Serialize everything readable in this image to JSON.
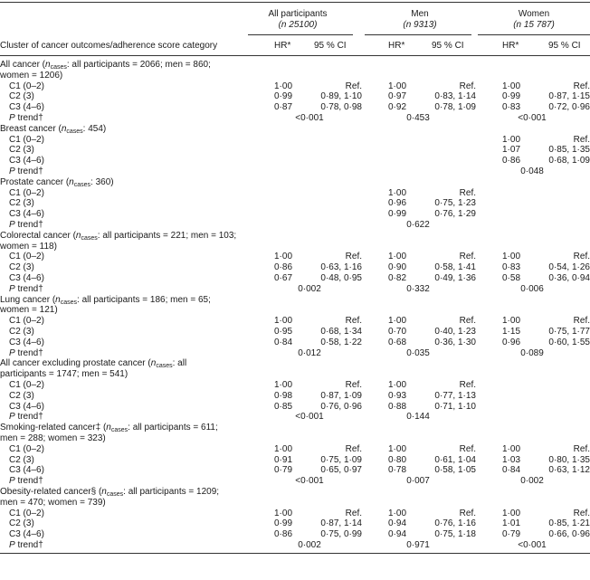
{
  "header": {
    "groups": [
      {
        "name": "All participants",
        "n": "(n 25100)"
      },
      {
        "name": "Men",
        "n": "(n 9313)"
      },
      {
        "name": "Women",
        "n": "(n 15 787)"
      }
    ],
    "row_label": "Cluster of cancer outcomes/adherence score category",
    "hr_label": "HR*",
    "ci_label": "95 % CI"
  },
  "sections": [
    {
      "title_lines": [
        "All cancer (n_cases: all participants = 2066; men = 860;",
        "women = 1206)"
      ],
      "rows": [
        {
          "label": "C1 (0–2)",
          "cells": [
            [
              "1·00",
              "Ref."
            ],
            [
              "1·00",
              "Ref."
            ],
            [
              "1·00",
              "Ref."
            ]
          ]
        },
        {
          "label": "C2 (3)",
          "cells": [
            [
              "0·99",
              "0·89, 1·10"
            ],
            [
              "0·97",
              "0·83, 1·14"
            ],
            [
              "0·99",
              "0·87, 1·15"
            ]
          ]
        },
        {
          "label": "C3 (4–6)",
          "cells": [
            [
              "0·87",
              "0·78, 0·98"
            ],
            [
              "0·92",
              "0·78, 1·09"
            ],
            [
              "0·83",
              "0·72, 0·96"
            ]
          ]
        }
      ],
      "ptrend": [
        "<0·001",
        "0·453",
        "<0·001"
      ]
    },
    {
      "title_lines": [
        "Breast cancer (n_cases: 454)"
      ],
      "rows": [
        {
          "label": "C1 (0–2)",
          "cells": [
            [
              "",
              ""
            ],
            [
              "",
              ""
            ],
            [
              "1·00",
              "Ref."
            ]
          ]
        },
        {
          "label": "C2 (3)",
          "cells": [
            [
              "",
              ""
            ],
            [
              "",
              ""
            ],
            [
              "1·07",
              "0·85, 1·35"
            ]
          ]
        },
        {
          "label": "C3 (4–6)",
          "cells": [
            [
              "",
              ""
            ],
            [
              "",
              ""
            ],
            [
              "0·86",
              "0·68, 1·09"
            ]
          ]
        }
      ],
      "ptrend": [
        "",
        "",
        "0·048"
      ]
    },
    {
      "title_lines": [
        "Prostate cancer (n_cases: 360)"
      ],
      "rows": [
        {
          "label": "C1 (0–2)",
          "cells": [
            [
              "",
              ""
            ],
            [
              "1·00",
              "Ref."
            ],
            [
              "",
              ""
            ]
          ]
        },
        {
          "label": "C2 (3)",
          "cells": [
            [
              "",
              ""
            ],
            [
              "0·96",
              "0·75, 1·23"
            ],
            [
              "",
              ""
            ]
          ]
        },
        {
          "label": "C3 (4–6)",
          "cells": [
            [
              "",
              ""
            ],
            [
              "0·99",
              "0·76, 1·29"
            ],
            [
              "",
              ""
            ]
          ]
        }
      ],
      "ptrend": [
        "",
        "0·622",
        ""
      ]
    },
    {
      "title_lines": [
        "Colorectal cancer (n_cases: all participants = 221; men = 103;",
        "women = 118)"
      ],
      "rows": [
        {
          "label": "C1 (0–2)",
          "cells": [
            [
              "1·00",
              "Ref."
            ],
            [
              "1·00",
              "Ref."
            ],
            [
              "1·00",
              "Ref."
            ]
          ]
        },
        {
          "label": "C2 (3)",
          "cells": [
            [
              "0·86",
              "0·63, 1·16"
            ],
            [
              "0·90",
              "0·58, 1·41"
            ],
            [
              "0·83",
              "0·54, 1·26"
            ]
          ]
        },
        {
          "label": "C3 (4–6)",
          "cells": [
            [
              "0·67",
              "0·48, 0·95"
            ],
            [
              "0·82",
              "0·49, 1·36"
            ],
            [
              "0·58",
              "0·36, 0·94"
            ]
          ]
        }
      ],
      "ptrend": [
        "0·002",
        "0·332",
        "0·006"
      ]
    },
    {
      "title_lines": [
        "Lung cancer (n_cases: all participants = 186; men = 65;",
        "women = 121)"
      ],
      "rows": [
        {
          "label": "C1 (0–2)",
          "cells": [
            [
              "1·00",
              "Ref."
            ],
            [
              "1·00",
              "Ref."
            ],
            [
              "1·00",
              "Ref."
            ]
          ]
        },
        {
          "label": "C2 (3)",
          "cells": [
            [
              "0·95",
              "0·68, 1·34"
            ],
            [
              "0·70",
              "0·40, 1·23"
            ],
            [
              "1·15",
              "0·75, 1·77"
            ]
          ]
        },
        {
          "label": "C3 (4–6)",
          "cells": [
            [
              "0·84",
              "0·58, 1·22"
            ],
            [
              "0·68",
              "0·36, 1·30"
            ],
            [
              "0·96",
              "0·60, 1·55"
            ]
          ]
        }
      ],
      "ptrend": [
        "0·012",
        "0·035",
        "0·089"
      ]
    },
    {
      "title_lines": [
        "All cancer excluding prostate cancer (n_cases: all",
        "participants = 1747; men = 541)"
      ],
      "rows": [
        {
          "label": "C1 (0–2)",
          "cells": [
            [
              "1·00",
              "Ref."
            ],
            [
              "1·00",
              "Ref."
            ],
            [
              "",
              ""
            ]
          ]
        },
        {
          "label": "C2 (3)",
          "cells": [
            [
              "0·98",
              "0·87, 1·09"
            ],
            [
              "0·93",
              "0·77, 1·13"
            ],
            [
              "",
              ""
            ]
          ]
        },
        {
          "label": "C3 (4–6)",
          "cells": [
            [
              "0·85",
              "0·76, 0·96"
            ],
            [
              "0·88",
              "0·71, 1·10"
            ],
            [
              "",
              ""
            ]
          ]
        }
      ],
      "ptrend": [
        "<0·001",
        "0·144",
        ""
      ]
    },
    {
      "title_lines": [
        "Smoking-related cancer‡ (n_cases: all participants = 611;",
        "men = 288; women = 323)"
      ],
      "rows": [
        {
          "label": "C1 (0–2)",
          "cells": [
            [
              "1·00",
              "Ref."
            ],
            [
              "1·00",
              "Ref."
            ],
            [
              "1·00",
              "Ref."
            ]
          ]
        },
        {
          "label": "C2 (3)",
          "cells": [
            [
              "0·91",
              "0·75, 1·09"
            ],
            [
              "0·80",
              "0·61, 1·04"
            ],
            [
              "1·03",
              "0·80, 1·35"
            ]
          ]
        },
        {
          "label": "C3 (4–6)",
          "cells": [
            [
              "0·79",
              "0·65, 0·97"
            ],
            [
              "0·78",
              "0·58, 1·05"
            ],
            [
              "0·84",
              "0·63, 1·12"
            ]
          ]
        }
      ],
      "ptrend": [
        "<0·001",
        "0·007",
        "0·002"
      ]
    },
    {
      "title_lines": [
        "Obesity-related cancer§ (n_cases: all participants = 1209;",
        "men = 470; women = 739)"
      ],
      "rows": [
        {
          "label": "C1 (0–2)",
          "cells": [
            [
              "1·00",
              "Ref."
            ],
            [
              "1·00",
              "Ref."
            ],
            [
              "1·00",
              "Ref."
            ]
          ]
        },
        {
          "label": "C2 (3)",
          "cells": [
            [
              "0·99",
              "0·87, 1·14"
            ],
            [
              "0·94",
              "0·76, 1·16"
            ],
            [
              "1·01",
              "0·85, 1·21"
            ]
          ]
        },
        {
          "label": "C3 (4–6)",
          "cells": [
            [
              "0·86",
              "0·75, 0·99"
            ],
            [
              "0·94",
              "0·75, 1·18"
            ],
            [
              "0·79",
              "0·66, 0·96"
            ]
          ]
        }
      ],
      "ptrend": [
        "0·002",
        "0·971",
        "<0·001"
      ]
    }
  ],
  "ptrend_label": "P trend†"
}
